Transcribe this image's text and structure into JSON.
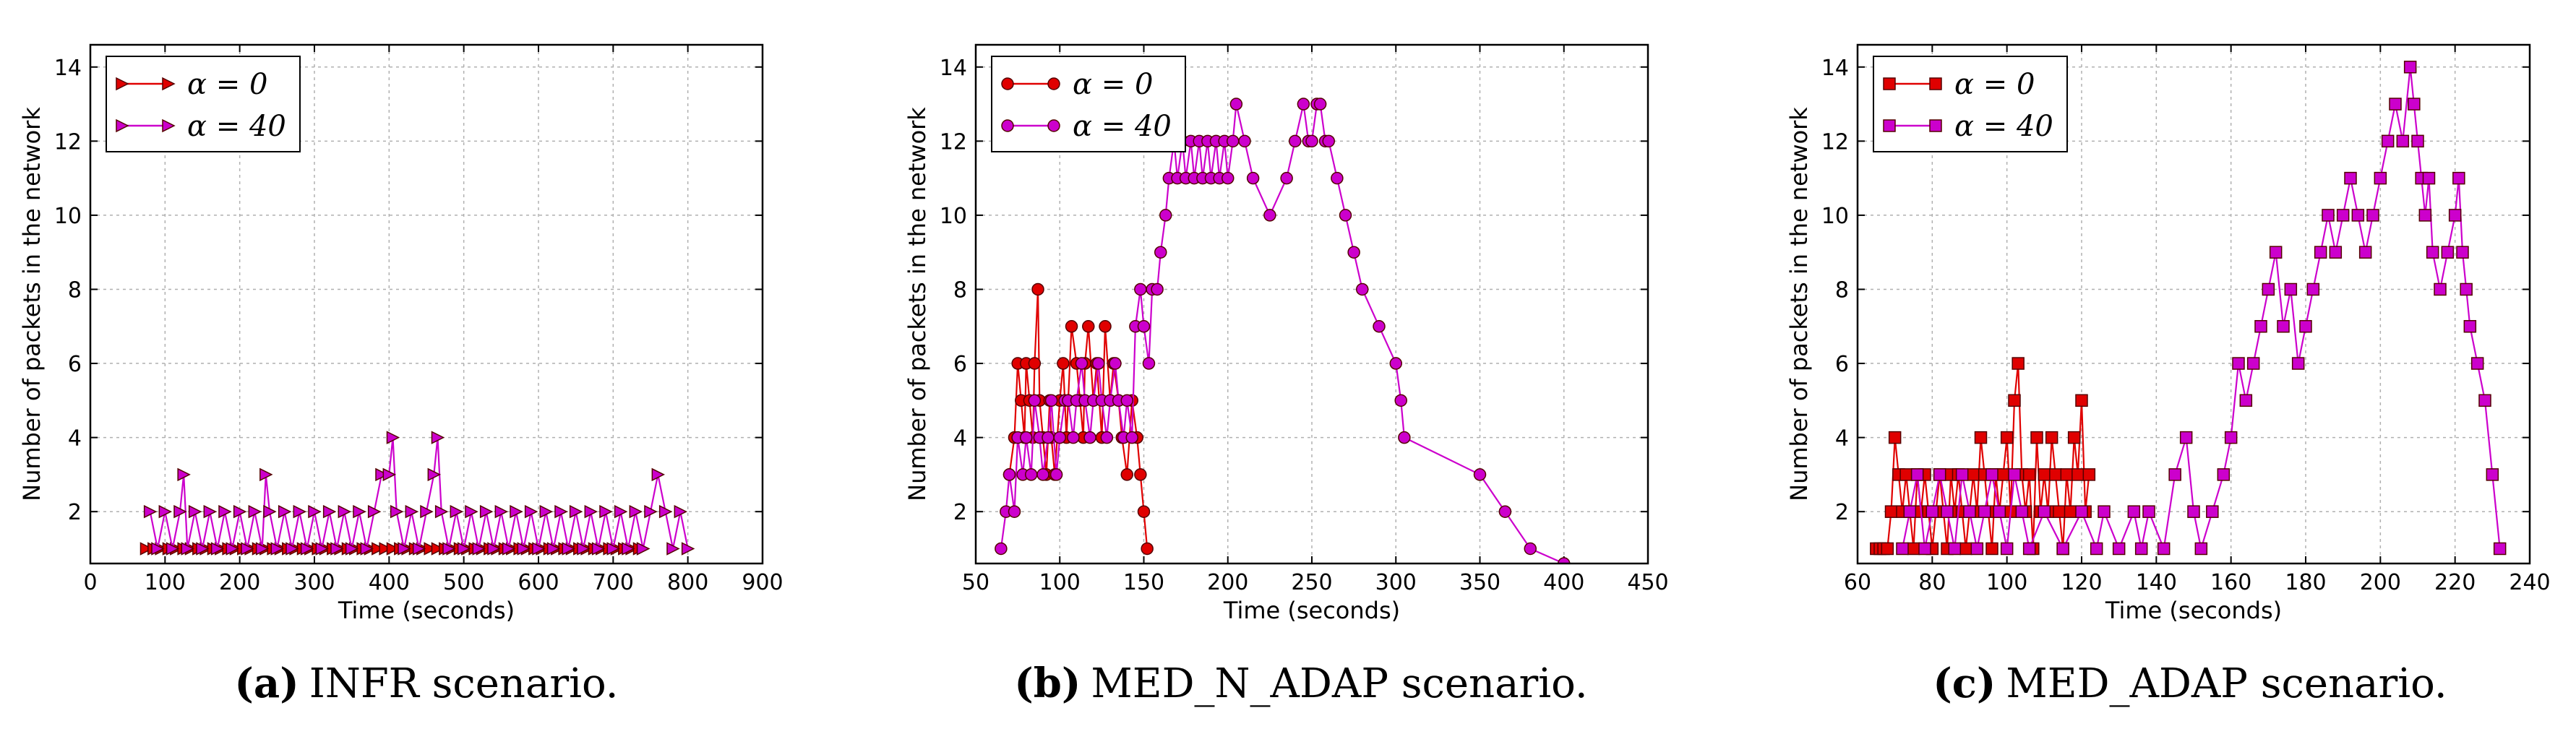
{
  "chart_data": [
    {
      "type": "line",
      "caption_letter": "(a)",
      "caption_text": "INFR scenario.",
      "xlabel": "Time (seconds)",
      "ylabel": "Number of packets in the network",
      "xlim": [
        0,
        900
      ],
      "ylim": [
        0.6,
        14.6
      ],
      "xticks": [
        0,
        100,
        200,
        300,
        400,
        500,
        600,
        700,
        800,
        900
      ],
      "yticks": [
        2,
        4,
        6,
        8,
        10,
        12,
        14
      ],
      "grid": true,
      "legend": "top-left",
      "marker": "triangle-right",
      "series": [
        {
          "name": "α = 0",
          "color": "#e00000",
          "x": [
            75,
            85,
            95,
            105,
            115,
            125,
            135,
            145,
            155,
            165,
            175,
            185,
            195,
            205,
            215,
            225,
            235,
            245,
            255,
            265,
            275,
            285,
            295,
            305,
            315,
            325,
            335,
            345,
            355,
            365,
            375,
            385,
            395,
            405,
            415,
            425,
            435,
            445,
            455,
            465,
            475,
            485,
            495,
            505,
            515,
            525,
            535,
            545,
            555,
            565,
            575,
            585,
            595,
            605,
            615,
            625,
            635,
            645,
            655,
            665,
            675,
            685,
            695,
            705,
            715,
            725,
            735,
            740
          ],
          "y": [
            1,
            1,
            1,
            1,
            1,
            1,
            1,
            1,
            1,
            1,
            1,
            1,
            1,
            1,
            1,
            1,
            1,
            1,
            1,
            1,
            1,
            1,
            1,
            1,
            1,
            1,
            1,
            1,
            1,
            1,
            1,
            1,
            1,
            1,
            1,
            1,
            1,
            1,
            1,
            1,
            1,
            1,
            1,
            1,
            1,
            1,
            1,
            1,
            1,
            1,
            1,
            1,
            1,
            1,
            1,
            1,
            1,
            1,
            1,
            1,
            1,
            1,
            1,
            1,
            1,
            1,
            1,
            1
          ]
        },
        {
          "name": "α = 40",
          "color": "#cc00cc",
          "x": [
            80,
            90,
            100,
            110,
            120,
            125,
            130,
            140,
            150,
            160,
            170,
            180,
            190,
            200,
            210,
            220,
            230,
            235,
            240,
            250,
            260,
            270,
            280,
            290,
            300,
            310,
            320,
            330,
            340,
            350,
            360,
            370,
            380,
            390,
            400,
            405,
            410,
            420,
            430,
            440,
            450,
            460,
            465,
            470,
            480,
            490,
            500,
            510,
            520,
            530,
            540,
            550,
            560,
            570,
            580,
            590,
            600,
            610,
            620,
            630,
            640,
            650,
            660,
            670,
            680,
            690,
            700,
            710,
            720,
            730,
            740,
            750,
            760,
            770,
            780,
            790,
            800
          ],
          "y": [
            2,
            1,
            2,
            1,
            2,
            3,
            1,
            2,
            1,
            2,
            1,
            2,
            1,
            2,
            1,
            2,
            1,
            3,
            2,
            1,
            2,
            1,
            2,
            1,
            2,
            1,
            2,
            1,
            2,
            1,
            2,
            1,
            2,
            3,
            3,
            4,
            2,
            1,
            2,
            1,
            2,
            3,
            4,
            2,
            1,
            2,
            1,
            2,
            1,
            2,
            1,
            2,
            1,
            2,
            1,
            2,
            1,
            2,
            1,
            2,
            1,
            2,
            1,
            2,
            1,
            2,
            1,
            2,
            1,
            2,
            1,
            2,
            3,
            2,
            1,
            2,
            1
          ]
        }
      ]
    },
    {
      "type": "line",
      "caption_letter": "(b)",
      "caption_text": "MED_N_ADAP scenario.",
      "xlabel": "Time (seconds)",
      "ylabel": "Number of packets in the network",
      "xlim": [
        50,
        450
      ],
      "ylim": [
        0.6,
        14.6
      ],
      "xticks": [
        50,
        100,
        150,
        200,
        250,
        300,
        350,
        400,
        450
      ],
      "yticks": [
        2,
        4,
        6,
        8,
        10,
        12,
        14
      ],
      "grid": true,
      "legend": "top-left",
      "marker": "circle",
      "series": [
        {
          "name": "α = 0",
          "color": "#e00000",
          "x": [
            70,
            73,
            75,
            77,
            79,
            80,
            82,
            84,
            85,
            87,
            88,
            90,
            92,
            94,
            95,
            97,
            100,
            102,
            104,
            105,
            107,
            110,
            112,
            114,
            115,
            117,
            120,
            122,
            125,
            127,
            130,
            132,
            135,
            137,
            140,
            143,
            146,
            148,
            150,
            152
          ],
          "y": [
            3,
            4,
            6,
            5,
            4,
            6,
            5,
            4,
            6,
            8,
            5,
            4,
            3,
            5,
            4,
            3,
            5,
            6,
            4,
            5,
            7,
            6,
            5,
            4,
            6,
            7,
            5,
            6,
            4,
            7,
            5,
            6,
            5,
            4,
            3,
            5,
            4,
            3,
            2,
            1
          ]
        },
        {
          "name": "α = 40",
          "color": "#cc00cc",
          "x": [
            65,
            68,
            70,
            73,
            75,
            78,
            80,
            83,
            85,
            88,
            90,
            93,
            95,
            98,
            100,
            103,
            105,
            108,
            110,
            113,
            115,
            118,
            120,
            123,
            125,
            128,
            130,
            133,
            135,
            138,
            140,
            143,
            145,
            148,
            150,
            153,
            155,
            158,
            160,
            163,
            165,
            168,
            170,
            173,
            175,
            178,
            180,
            183,
            185,
            188,
            190,
            193,
            195,
            198,
            200,
            203,
            205,
            210,
            215,
            225,
            235,
            240,
            245,
            248,
            250,
            253,
            255,
            258,
            260,
            265,
            270,
            275,
            280,
            290,
            300,
            303,
            305,
            350,
            365,
            380,
            400
          ],
          "y": [
            1,
            2,
            3,
            2,
            4,
            3,
            4,
            3,
            5,
            4,
            3,
            4,
            5,
            3,
            4,
            5,
            5,
            4,
            5,
            6,
            5,
            4,
            5,
            6,
            5,
            4,
            5,
            6,
            5,
            4,
            5,
            4,
            7,
            8,
            7,
            6,
            8,
            8,
            9,
            10,
            11,
            12,
            11,
            12,
            11,
            12,
            11,
            12,
            11,
            12,
            11,
            12,
            11,
            12,
            11,
            12,
            13,
            12,
            11,
            10,
            11,
            12,
            13,
            12,
            12,
            13,
            13,
            12,
            12,
            11,
            10,
            9,
            8,
            7,
            6,
            5,
            4,
            3,
            2,
            1,
            0.6
          ]
        }
      ]
    },
    {
      "type": "line",
      "caption_letter": "(c)",
      "caption_text": "MED_ADAP scenario.",
      "xlabel": "Time (seconds)",
      "ylabel": "Number of packets in the network",
      "xlim": [
        60,
        240
      ],
      "ylim": [
        0.6,
        14.6
      ],
      "xticks": [
        60,
        80,
        100,
        120,
        140,
        160,
        180,
        200,
        220,
        240
      ],
      "yticks": [
        2,
        4,
        6,
        8,
        10,
        12,
        14
      ],
      "grid": true,
      "legend": "top-left",
      "marker": "square",
      "series": [
        {
          "name": "α = 0",
          "color": "#e00000",
          "x": [
            65,
            66,
            67,
            68,
            69,
            70,
            71,
            72,
            73,
            74,
            75,
            76,
            77,
            78,
            79,
            80,
            81,
            82,
            83,
            84,
            85,
            86,
            87,
            88,
            89,
            90,
            91,
            92,
            93,
            94,
            95,
            96,
            97,
            98,
            99,
            100,
            101,
            102,
            103,
            104,
            105,
            106,
            107,
            108,
            109,
            110,
            111,
            112,
            113,
            114,
            115,
            116,
            117,
            118,
            119,
            120,
            121,
            122
          ],
          "y": [
            1,
            1,
            1,
            1,
            2,
            4,
            3,
            2,
            3,
            2,
            1,
            3,
            2,
            3,
            2,
            1,
            2,
            3,
            2,
            1,
            3,
            2,
            3,
            2,
            1,
            2,
            3,
            2,
            4,
            3,
            2,
            1,
            3,
            2,
            3,
            4,
            2,
            5,
            6,
            3,
            2,
            3,
            1,
            4,
            2,
            3,
            2,
            4,
            3,
            2,
            1,
            3,
            2,
            4,
            3,
            5,
            2,
            3
          ]
        },
        {
          "name": "α = 40",
          "color": "#cc00cc",
          "x": [
            72,
            74,
            76,
            78,
            80,
            82,
            84,
            86,
            88,
            90,
            92,
            94,
            96,
            98,
            100,
            102,
            104,
            106,
            110,
            115,
            120,
            124,
            126,
            130,
            134,
            136,
            138,
            142,
            145,
            148,
            150,
            152,
            155,
            158,
            160,
            162,
            164,
            166,
            168,
            170,
            172,
            174,
            176,
            178,
            180,
            182,
            184,
            186,
            188,
            190,
            192,
            194,
            196,
            198,
            200,
            202,
            204,
            206,
            208,
            209,
            210,
            211,
            212,
            213,
            214,
            216,
            218,
            220,
            221,
            222,
            223,
            224,
            226,
            228,
            230,
            232
          ],
          "y": [
            1,
            2,
            3,
            1,
            2,
            3,
            2,
            1,
            3,
            2,
            1,
            2,
            3,
            2,
            1,
            3,
            2,
            1,
            2,
            1,
            2,
            1,
            2,
            1,
            2,
            1,
            2,
            1,
            3,
            4,
            2,
            1,
            2,
            3,
            4,
            6,
            5,
            6,
            7,
            8,
            9,
            7,
            8,
            6,
            7,
            8,
            9,
            10,
            9,
            10,
            11,
            10,
            9,
            10,
            11,
            12,
            13,
            12,
            14,
            13,
            12,
            11,
            10,
            11,
            9,
            8,
            9,
            10,
            11,
            9,
            8,
            7,
            6,
            5,
            3,
            1
          ]
        }
      ]
    }
  ]
}
